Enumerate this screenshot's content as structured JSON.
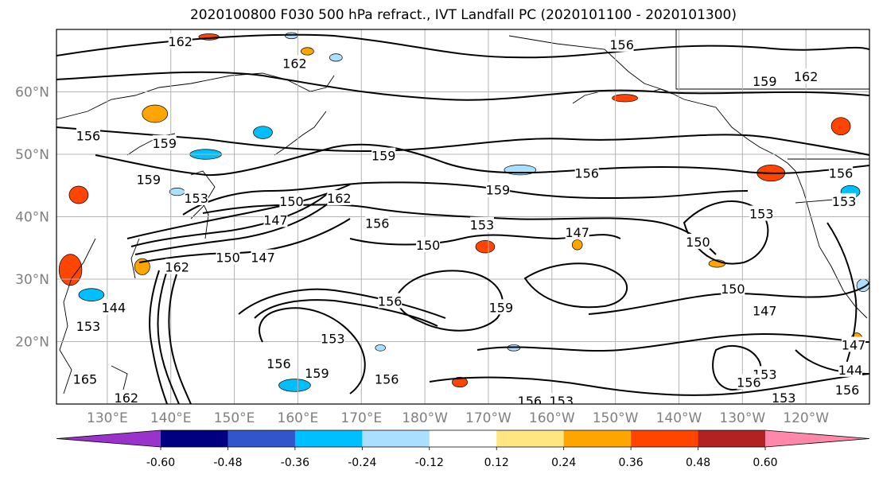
{
  "chart_data": {
    "type": "heatmap",
    "title": "2020100800 F030 500 hPa refract., IVT Landfall PC (2020101100 - 2020101300)",
    "map": {
      "lon_ticks": [
        "130°E",
        "140°E",
        "150°E",
        "160°E",
        "170°E",
        "180°W",
        "170°W",
        "160°W",
        "150°W",
        "140°W",
        "130°W",
        "120°W"
      ],
      "lat_ticks": [
        "60°N",
        "50°N",
        "40°N",
        "30°N",
        "20°N"
      ],
      "lon_range": [
        122,
        250
      ],
      "lat_range": [
        10,
        70
      ],
      "grid": true
    },
    "colorbar": {
      "ticks": [
        "-0.60",
        "-0.48",
        "-0.36",
        "-0.24",
        "-0.12",
        "0.12",
        "0.24",
        "0.36",
        "0.48",
        "0.60"
      ],
      "colors": [
        "#9933cc",
        "#000080",
        "#3355cc",
        "#00bfff",
        "#aadfff",
        "#ffffff",
        "#ffe680",
        "#ffa500",
        "#ff4500",
        "#b22222",
        "#ff88aa"
      ],
      "extend": "both"
    },
    "contour_labels": [
      {
        "text": "162",
        "lon": 141.5,
        "lat": 68.1
      },
      {
        "text": "162",
        "lon": 159.5,
        "lat": 64.6
      },
      {
        "text": "156",
        "lon": 211.0,
        "lat": 67.6
      },
      {
        "text": "159",
        "lon": 233.5,
        "lat": 61.7
      },
      {
        "text": "162",
        "lon": 240.0,
        "lat": 62.5
      },
      {
        "text": "159",
        "lon": 139.0,
        "lat": 51.8
      },
      {
        "text": "156",
        "lon": 127.0,
        "lat": 53.0
      },
      {
        "text": "159",
        "lon": 173.5,
        "lat": 49.8
      },
      {
        "text": "156",
        "lon": 205.5,
        "lat": 47.0
      },
      {
        "text": "159",
        "lon": 191.5,
        "lat": 44.3
      },
      {
        "text": "159",
        "lon": 136.5,
        "lat": 46.0
      },
      {
        "text": "153",
        "lon": 144.0,
        "lat": 43.0
      },
      {
        "text": "150",
        "lon": 159.0,
        "lat": 42.5
      },
      {
        "text": "162",
        "lon": 166.5,
        "lat": 43.0
      },
      {
        "text": "147",
        "lon": 156.5,
        "lat": 39.5
      },
      {
        "text": "156",
        "lon": 172.5,
        "lat": 39.0
      },
      {
        "text": "153",
        "lon": 189.0,
        "lat": 38.7
      },
      {
        "text": "147",
        "lon": 204.0,
        "lat": 37.5
      },
      {
        "text": "153",
        "lon": 233.0,
        "lat": 40.5
      },
      {
        "text": "156",
        "lon": 245.5,
        "lat": 47.0
      },
      {
        "text": "153",
        "lon": 246.0,
        "lat": 42.5
      },
      {
        "text": "150",
        "lon": 180.5,
        "lat": 35.5
      },
      {
        "text": "150",
        "lon": 149.0,
        "lat": 33.5
      },
      {
        "text": "147",
        "lon": 154.5,
        "lat": 33.5
      },
      {
        "text": "162",
        "lon": 141.0,
        "lat": 32.0
      },
      {
        "text": "156",
        "lon": 174.5,
        "lat": 26.5
      },
      {
        "text": "159",
        "lon": 192.0,
        "lat": 25.5
      },
      {
        "text": "150",
        "lon": 228.5,
        "lat": 28.5
      },
      {
        "text": "147",
        "lon": 233.5,
        "lat": 25.0
      },
      {
        "text": "150",
        "lon": 223.0,
        "lat": 36.0
      },
      {
        "text": "153",
        "lon": 165.5,
        "lat": 20.5
      },
      {
        "text": "156",
        "lon": 157.0,
        "lat": 16.5
      },
      {
        "text": "159",
        "lon": 163.0,
        "lat": 15.0
      },
      {
        "text": "156",
        "lon": 174.0,
        "lat": 14.0
      },
      {
        "text": "144",
        "lon": 131.0,
        "lat": 25.5
      },
      {
        "text": "153",
        "lon": 127.0,
        "lat": 22.5
      },
      {
        "text": "165",
        "lon": 126.5,
        "lat": 14.0
      },
      {
        "text": "162",
        "lon": 133.0,
        "lat": 11.0
      },
      {
        "text": "156",
        "lon": 196.5,
        "lat": 10.5
      },
      {
        "text": "153",
        "lon": 201.5,
        "lat": 10.5
      },
      {
        "text": "153",
        "lon": 233.5,
        "lat": 14.8
      },
      {
        "text": "156",
        "lon": 231.0,
        "lat": 13.5
      },
      {
        "text": "153",
        "lon": 236.5,
        "lat": 11.0
      },
      {
        "text": "147",
        "lon": 247.5,
        "lat": 19.5
      },
      {
        "text": "144",
        "lon": 247.0,
        "lat": 15.5
      },
      {
        "text": "156",
        "lon": 246.5,
        "lat": 12.3
      }
    ],
    "shaded_areas": [
      {
        "value": 0.36,
        "lon": 146.0,
        "lat": 68.8,
        "rx": 1.6,
        "ry": 0.5
      },
      {
        "value": 0.3,
        "lon": 137.5,
        "lat": 56.5,
        "rx": 2.0,
        "ry": 1.4
      },
      {
        "value": 0.36,
        "lon": 125.5,
        "lat": 43.5,
        "rx": 1.5,
        "ry": 1.4
      },
      {
        "value": 0.42,
        "lon": 124.2,
        "lat": 31.5,
        "rx": 1.8,
        "ry": 2.5
      },
      {
        "value": 0.3,
        "lon": 135.5,
        "lat": 32.0,
        "rx": 1.2,
        "ry": 1.3
      },
      {
        "value": 0.36,
        "lon": 189.5,
        "lat": 35.2,
        "rx": 1.5,
        "ry": 1.0
      },
      {
        "value": 0.3,
        "lon": 204.0,
        "lat": 35.5,
        "rx": 0.8,
        "ry": 0.8
      },
      {
        "value": 0.36,
        "lon": 211.5,
        "lat": 59.0,
        "rx": 2.0,
        "ry": 0.6
      },
      {
        "value": 0.36,
        "lon": 245.5,
        "lat": 54.5,
        "rx": 1.5,
        "ry": 1.4
      },
      {
        "value": 0.36,
        "lon": 234.5,
        "lat": 47.0,
        "rx": 2.2,
        "ry": 1.3
      },
      {
        "value": 0.3,
        "lon": 226.0,
        "lat": 32.5,
        "rx": 1.3,
        "ry": 0.6
      },
      {
        "value": 0.36,
        "lon": 185.5,
        "lat": 13.5,
        "rx": 1.2,
        "ry": 0.8
      },
      {
        "value": 0.3,
        "lon": 161.5,
        "lat": 66.5,
        "rx": 1.0,
        "ry": 0.6
      },
      {
        "value": 0.3,
        "lon": 248.0,
        "lat": 20.0,
        "rx": 1.0,
        "ry": 1.4
      },
      {
        "value": -0.3,
        "lon": 159.5,
        "lat": 13.0,
        "rx": 2.5,
        "ry": 1.0
      },
      {
        "value": -0.3,
        "lon": 127.5,
        "lat": 27.5,
        "rx": 2.0,
        "ry": 1.0
      },
      {
        "value": -0.3,
        "lon": 145.5,
        "lat": 50.0,
        "rx": 2.5,
        "ry": 0.8
      },
      {
        "value": -0.3,
        "lon": 154.5,
        "lat": 53.5,
        "rx": 1.5,
        "ry": 1.0
      },
      {
        "value": -0.18,
        "lon": 195.0,
        "lat": 47.5,
        "rx": 2.5,
        "ry": 0.8
      },
      {
        "value": -0.18,
        "lon": 141.0,
        "lat": 44.0,
        "rx": 1.2,
        "ry": 0.6
      },
      {
        "value": -0.3,
        "lon": 247.0,
        "lat": 44.0,
        "rx": 1.5,
        "ry": 1.0
      },
      {
        "value": -0.18,
        "lon": 166.0,
        "lat": 65.5,
        "rx": 1.0,
        "ry": 0.6
      },
      {
        "value": -0.18,
        "lon": 159.0,
        "lat": 69.0,
        "rx": 1.0,
        "ry": 0.5
      },
      {
        "value": -0.18,
        "lon": 249.0,
        "lat": 29.0,
        "rx": 1.0,
        "ry": 1.0
      },
      {
        "value": -0.18,
        "lon": 173.0,
        "lat": 19.0,
        "rx": 0.8,
        "ry": 0.5
      },
      {
        "value": -0.18,
        "lon": 194.0,
        "lat": 19.0,
        "rx": 1.0,
        "ry": 0.5
      }
    ]
  }
}
